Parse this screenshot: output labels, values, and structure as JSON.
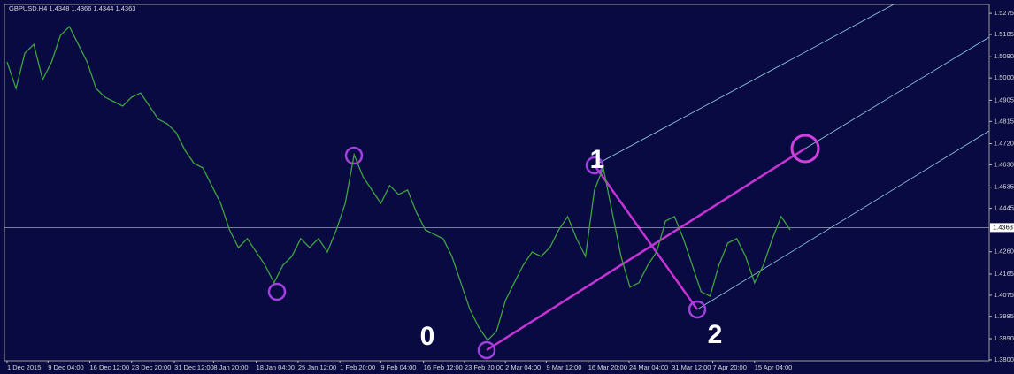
{
  "chart_data": {
    "type": "line",
    "title": "GBPUSD,H4  1.4348 1.4366 1.4344 1.4363",
    "series": [
      {
        "name": "GBPUSD,H4",
        "color": "#3fa33f",
        "values": [
          1.5068,
          1.4955,
          1.5106,
          1.5143,
          1.4993,
          1.5068,
          1.5181,
          1.5219,
          1.5143,
          1.5068,
          1.4955,
          1.4918,
          1.4899,
          1.488,
          1.4918,
          1.4936,
          1.488,
          1.4824,
          1.4805,
          1.4767,
          1.4692,
          1.4636,
          1.4617,
          1.4542,
          1.4466,
          1.4353,
          1.4278,
          1.4316,
          1.4259,
          1.4203,
          1.4128,
          1.4203,
          1.424,
          1.4316,
          1.4278,
          1.4316,
          1.4259,
          1.4353,
          1.4466,
          1.4673,
          1.4579,
          1.4523,
          1.4466,
          1.4542,
          1.4504,
          1.4523,
          1.4428,
          1.4353,
          1.4334,
          1.4316,
          1.424,
          1.4128,
          1.4015,
          1.3939,
          1.3883,
          1.3921,
          1.4052,
          1.4128,
          1.4203,
          1.4259,
          1.424,
          1.4278,
          1.4353,
          1.441,
          1.4316,
          1.424,
          1.4523,
          1.4617,
          1.4428,
          1.424,
          1.4109,
          1.4128,
          1.4203,
          1.4259,
          1.4391,
          1.441,
          1.4316,
          1.4203,
          1.409,
          1.4071,
          1.4203,
          1.4297,
          1.4316,
          1.424,
          1.4128,
          1.4203,
          1.4316,
          1.441,
          1.4353
        ]
      }
    ],
    "xticks": [
      {
        "value": 0,
        "label": "1 Dec 2015"
      },
      {
        "value": 4.6,
        "label": "9 Dec 04:00"
      },
      {
        "value": 9.3,
        "label": "16 Dec 12:00"
      },
      {
        "value": 14,
        "label": "23 Dec 20:00"
      },
      {
        "value": 18.8,
        "label": "31 Dec 12:00"
      },
      {
        "value": 23.2,
        "label": "8 Jan 20:00"
      },
      {
        "value": 28,
        "label": "18 Jan 04:00"
      },
      {
        "value": 32.7,
        "label": "25 Jan 12:00"
      },
      {
        "value": 37.4,
        "label": "1 Feb 20:00"
      },
      {
        "value": 42,
        "label": "9 Feb 04:00"
      },
      {
        "value": 46.8,
        "label": "16 Feb 12:00"
      },
      {
        "value": 51.4,
        "label": "23 Feb 20:00"
      },
      {
        "value": 56,
        "label": "2 Mar 04:00"
      },
      {
        "value": 60.6,
        "label": "9 Mar 12:00"
      },
      {
        "value": 65.3,
        "label": "16 Mar 20:00"
      },
      {
        "value": 69.9,
        "label": "24 Mar 04:00"
      },
      {
        "value": 74.7,
        "label": "31 Mar 12:00"
      },
      {
        "value": 79.3,
        "label": "7 Apr 20:00"
      },
      {
        "value": 84,
        "label": "15 Apr 04:00"
      }
    ],
    "xlim": [
      0,
      88
    ],
    "ylim": [
      1.3796,
      1.5313
    ],
    "yticks": [
      1.5275,
      1.5185,
      {
        "value": 1.509,
        "label": "1.5090"
      },
      {
        "value": 1.5,
        "label": "1.5000"
      },
      1.4905,
      1.4815,
      {
        "value": 1.472,
        "label": "1.4720"
      },
      {
        "value": 1.463,
        "label": "1.4630"
      },
      1.4535,
      1.4445,
      {
        "value": 1.426,
        "label": "1.4260"
      },
      1.4165,
      1.4075,
      1.3985,
      {
        "value": 1.389,
        "label": "1.3890"
      },
      {
        "value": 1.38,
        "label": "1.3800"
      }
    ],
    "current_price": 1.4363,
    "annotations": [
      "0",
      "1",
      "2"
    ]
  }
}
